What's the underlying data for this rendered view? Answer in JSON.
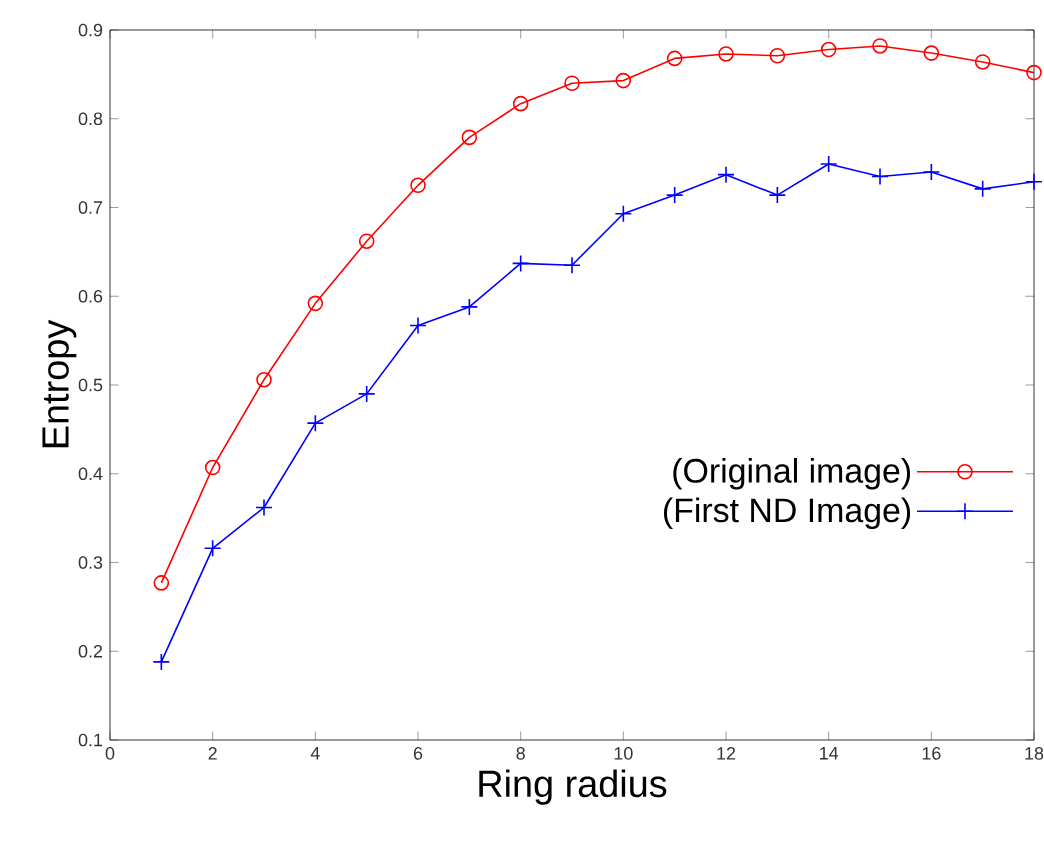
{
  "chart_data": {
    "type": "line",
    "xlabel": "Ring radius",
    "ylabel": "Entropy",
    "x": [
      1,
      2,
      3,
      4,
      5,
      6,
      7,
      8,
      9,
      10,
      11,
      12,
      13,
      14,
      15,
      16,
      17,
      18
    ],
    "series": [
      {
        "name": "(Original image)",
        "color": "#ff0000",
        "marker": "circle",
        "values": [
          0.277,
          0.407,
          0.506,
          0.592,
          0.662,
          0.725,
          0.779,
          0.817,
          0.84,
          0.843,
          0.868,
          0.873,
          0.871,
          0.878,
          0.882,
          0.874,
          0.864,
          0.852
        ]
      },
      {
        "name": "(First ND Image)",
        "color": "#0000ff",
        "marker": "cross",
        "values": [
          0.188,
          0.316,
          0.362,
          0.457,
          0.49,
          0.567,
          0.588,
          0.637,
          0.635,
          0.693,
          0.714,
          0.737,
          0.714,
          0.749,
          0.735,
          0.74,
          0.721,
          0.729
        ]
      }
    ],
    "xlim": [
      0,
      18
    ],
    "xticks": [
      0,
      2,
      4,
      6,
      8,
      10,
      12,
      14,
      16,
      18
    ],
    "ylim": [
      0.1,
      0.9
    ],
    "yticks": [
      0.1,
      0.2,
      0.3,
      0.4,
      0.5,
      0.6,
      0.7,
      0.8,
      0.9
    ],
    "legend": "right",
    "grid": false
  }
}
